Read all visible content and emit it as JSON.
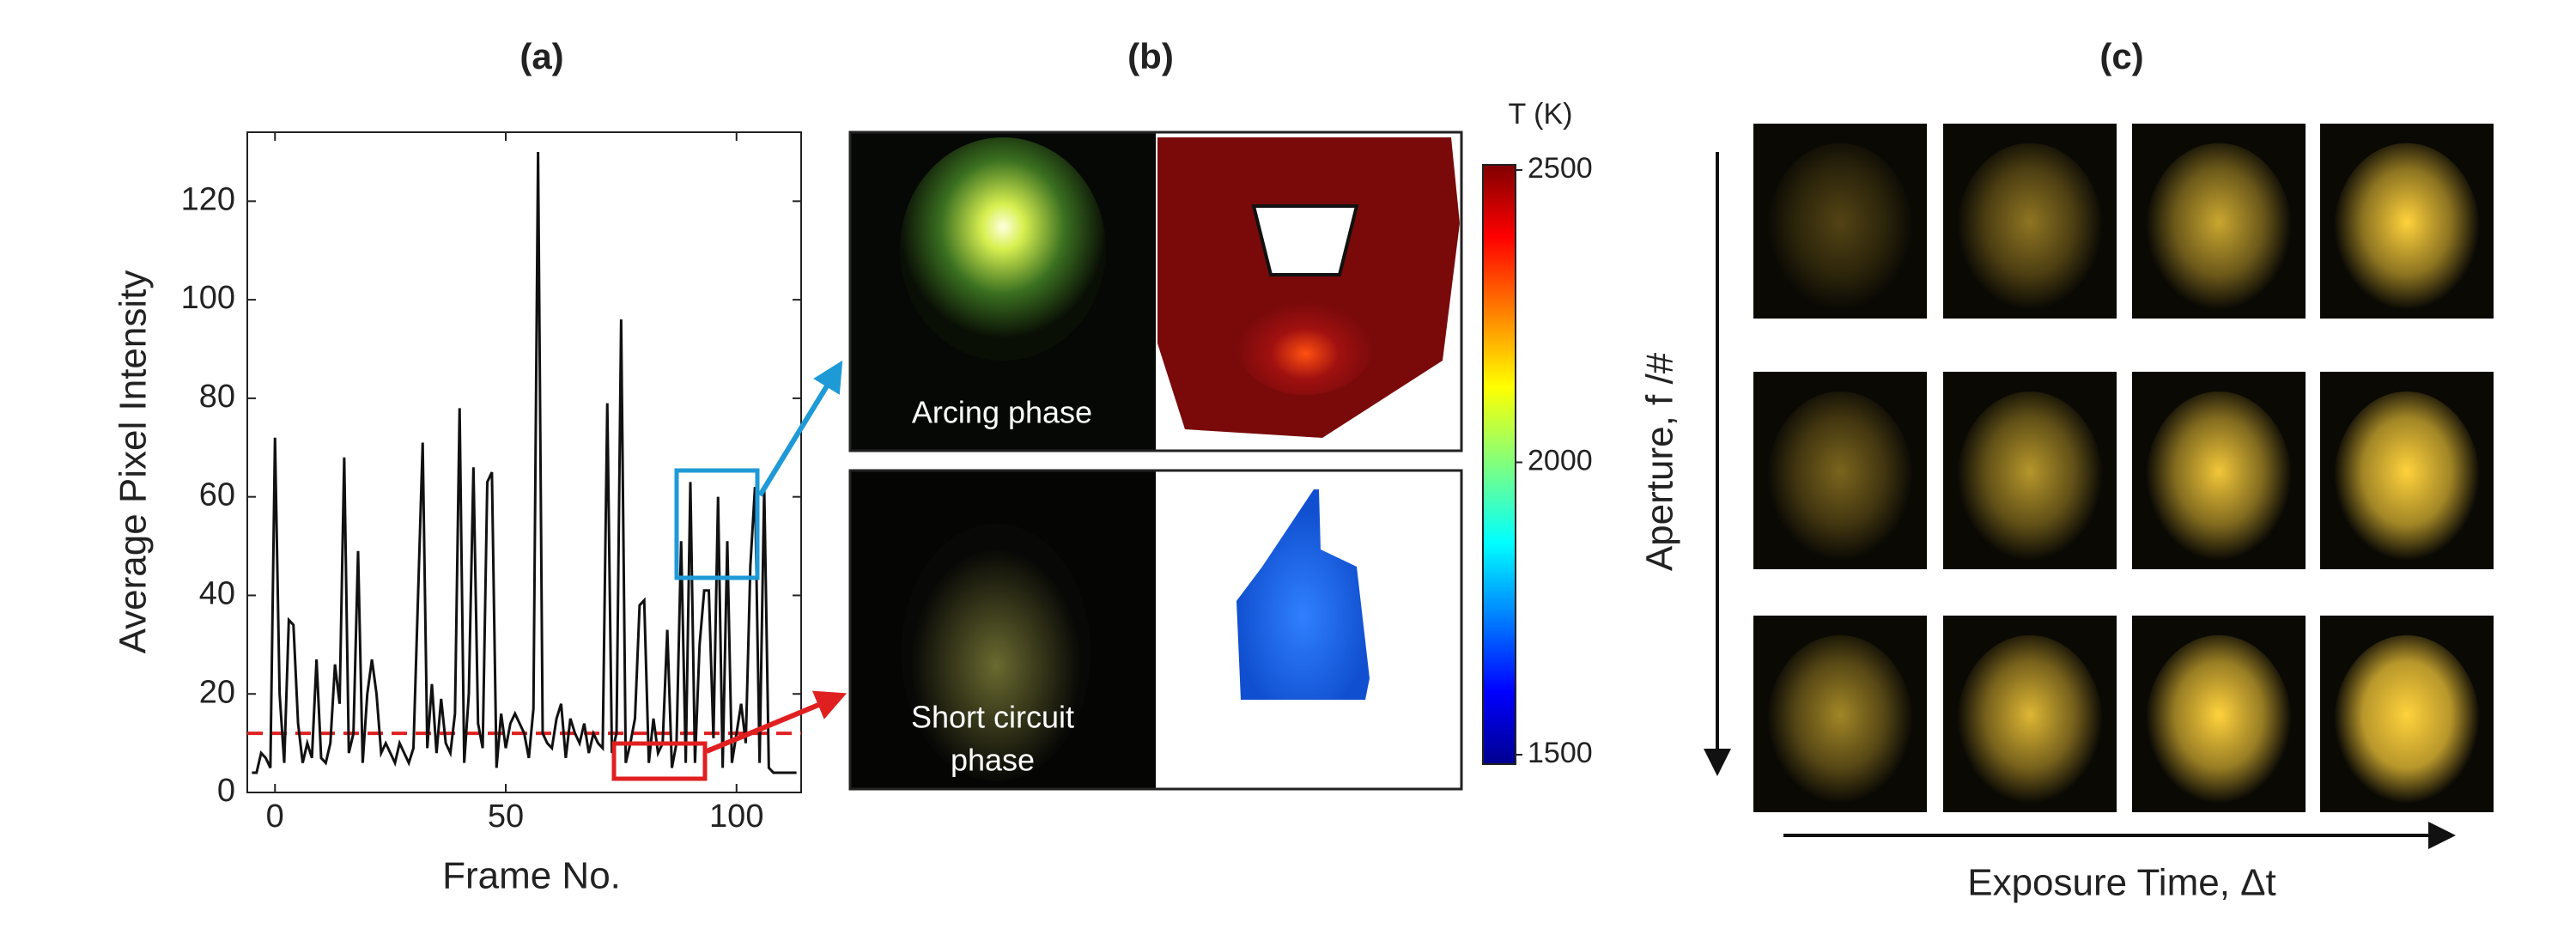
{
  "chart_data": {
    "type": "line",
    "title": "(a)",
    "x_label": "Frame No.",
    "y_label": "Average Pixel Intensity",
    "x": [
      -5,
      -4,
      -3,
      -2,
      -1,
      0,
      1,
      2,
      3,
      4,
      5,
      6,
      7,
      8,
      9,
      10,
      11,
      12,
      13,
      14,
      15,
      16,
      17,
      18,
      19,
      20,
      21,
      22,
      23,
      24,
      25,
      26,
      27,
      28,
      29,
      30,
      31,
      32,
      33,
      34,
      35,
      36,
      37,
      38,
      39,
      40,
      41,
      42,
      43,
      44,
      45,
      46,
      47,
      48,
      49,
      50,
      51,
      52,
      53,
      54,
      55,
      56,
      57,
      58,
      59,
      60,
      61,
      62,
      63,
      64,
      65,
      66,
      67,
      68,
      69,
      70,
      71,
      72,
      73,
      74,
      75,
      76,
      77,
      78,
      79,
      80,
      81,
      82,
      83,
      84,
      85,
      86,
      87,
      88,
      89,
      90,
      91,
      92,
      93,
      94,
      95,
      96,
      97,
      98,
      99,
      100,
      101,
      102,
      103,
      104,
      105,
      106,
      107,
      108,
      109,
      110,
      111,
      112,
      113
    ],
    "series": [
      {
        "color": "#111111",
        "values": [
          4,
          4,
          8,
          7,
          5,
          72,
          20,
          6,
          35,
          34,
          14,
          6,
          10,
          7,
          27,
          7,
          6,
          10,
          26,
          18,
          68,
          8,
          12,
          49,
          6,
          20,
          27,
          20,
          8,
          10,
          8,
          6,
          10,
          8,
          6,
          9,
          40,
          71,
          9,
          22,
          8,
          19,
          10,
          8,
          16,
          78,
          6,
          20,
          66,
          14,
          9,
          63,
          65,
          5,
          16,
          9,
          14,
          16,
          14,
          12,
          7,
          17,
          130,
          12,
          10,
          9,
          15,
          18,
          7,
          15,
          12,
          10,
          14,
          8,
          12,
          10,
          9,
          79,
          8,
          12,
          96,
          6,
          10,
          15,
          38,
          39,
          6,
          15,
          8,
          10,
          33,
          5,
          10,
          51,
          6,
          63,
          6,
          30,
          41,
          41,
          11,
          60,
          5,
          51,
          6,
          12,
          18,
          10,
          46,
          62,
          6,
          62,
          5,
          4,
          4,
          4,
          4,
          4,
          4
        ]
      }
    ],
    "threshold": {
      "value": 12,
      "color": "#e02020"
    },
    "xlim": [
      -6,
      114
    ],
    "ylim": [
      0,
      134
    ],
    "xticks": [
      0,
      50,
      100
    ],
    "yticks": [
      0,
      20,
      40,
      60,
      80,
      100,
      120
    ]
  },
  "panel_b": {
    "title": "(b)",
    "label_top": "Arcing phase",
    "label_bottom": [
      "Short circuit",
      "phase"
    ],
    "colorbar": {
      "title": "T (K)",
      "lim": [
        1500,
        2500
      ],
      "ticks": [
        1500,
        2000,
        2500
      ]
    }
  },
  "panel_c": {
    "title": "(c)",
    "y_label": "Aperture, f /#",
    "x_label": "Exposure Time, Δt"
  }
}
